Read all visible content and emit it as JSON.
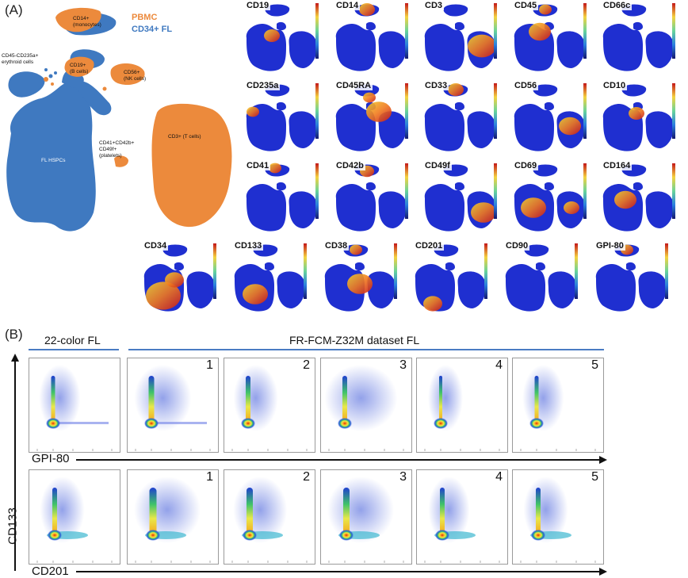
{
  "panel_a": {
    "letter": "(A)",
    "legend": {
      "pbmc": "PBMC",
      "fl": "CD34+ FL",
      "pbmc_color": "#ec8a3c",
      "fl_color": "#3f79c0"
    },
    "cluster_labels": {
      "monocytes": [
        "CD14+",
        "(monocytes)"
      ],
      "erythroid": [
        "CD45-CD235a+",
        "erythroid cells"
      ],
      "bcells": [
        "CD19+",
        "(B cells)"
      ],
      "nkcells": [
        "CD56+",
        "(NK cells)"
      ],
      "platelets": [
        "CD41+CD42b+",
        "CD49f+",
        "(platelets)"
      ],
      "tcells": "CD3+ (T cells)",
      "hspcs": "FL HSPCs"
    },
    "feature_plots": [
      "CD19",
      "CD14",
      "CD3",
      "CD45",
      "CD66c",
      "CD235a",
      "CD45RA",
      "CD33",
      "CD56",
      "CD10",
      "CD41",
      "CD42b",
      "CD49f",
      "CD69",
      "CD164",
      "CD34",
      "CD133",
      "CD38",
      "CD201",
      "CD90",
      "GPI-80"
    ]
  },
  "panel_b": {
    "letter": "(B)",
    "group_left": "22-color FL",
    "group_right": "FR-FCM-Z32M dataset FL",
    "y_axis": "CD133",
    "rows": [
      {
        "x_axis": "GPI-80",
        "plot_numbers": [
          "",
          "1",
          "2",
          "3",
          "4",
          "5"
        ]
      },
      {
        "x_axis": "CD201",
        "plot_numbers": [
          "",
          "1",
          "2",
          "3",
          "4",
          "5"
        ]
      }
    ]
  }
}
